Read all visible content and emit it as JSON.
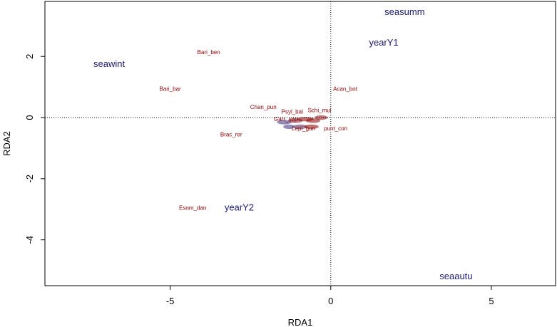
{
  "chart_data": {
    "type": "scatter",
    "title": "",
    "xlabel": "RDA1",
    "ylabel": "RDA2",
    "xlim": [
      -8.9,
      7.0
    ],
    "ylim": [
      -5.5,
      3.8
    ],
    "xticks": [
      -5,
      0,
      5
    ],
    "yticks": [
      -4,
      -2,
      0,
      2
    ],
    "reference_lines": {
      "x": 0,
      "y": 0,
      "style": "dotted"
    },
    "colors": {
      "species": "#8b0000",
      "factors": "#1a1a6e",
      "axes": "#000000"
    },
    "species": [
      {
        "label": "Bari_ben",
        "x": -3.8,
        "y": 2.15
      },
      {
        "label": "Bari_bar",
        "x": -5.0,
        "y": 0.95
      },
      {
        "label": "Acan_bot",
        "x": 0.45,
        "y": 0.95
      },
      {
        "label": "Chan_pun",
        "x": -2.1,
        "y": 0.35
      },
      {
        "label": "Psyl_bal",
        "x": -1.2,
        "y": 0.2
      },
      {
        "label": "Schi_mul",
        "x": -0.35,
        "y": 0.25
      },
      {
        "label": "Garr_spp",
        "x": -1.4,
        "y": -0.05
      },
      {
        "label": "Lepi_gun",
        "x": -0.85,
        "y": -0.35
      },
      {
        "label": "punt_con",
        "x": 0.15,
        "y": -0.35
      },
      {
        "label": "Brac_rer",
        "x": -3.1,
        "y": -0.55
      },
      {
        "label": "Esom_dan",
        "x": -4.3,
        "y": -2.95
      }
    ],
    "factors": [
      {
        "label": "seasumm",
        "x": 2.3,
        "y": 3.45
      },
      {
        "label": "yearY1",
        "x": 1.65,
        "y": 2.45
      },
      {
        "label": "seawint",
        "x": -6.9,
        "y": 1.75
      },
      {
        "label": "yearY2",
        "x": -2.85,
        "y": -2.95
      },
      {
        "label": "seaautu",
        "x": 3.9,
        "y": -5.2
      }
    ]
  }
}
